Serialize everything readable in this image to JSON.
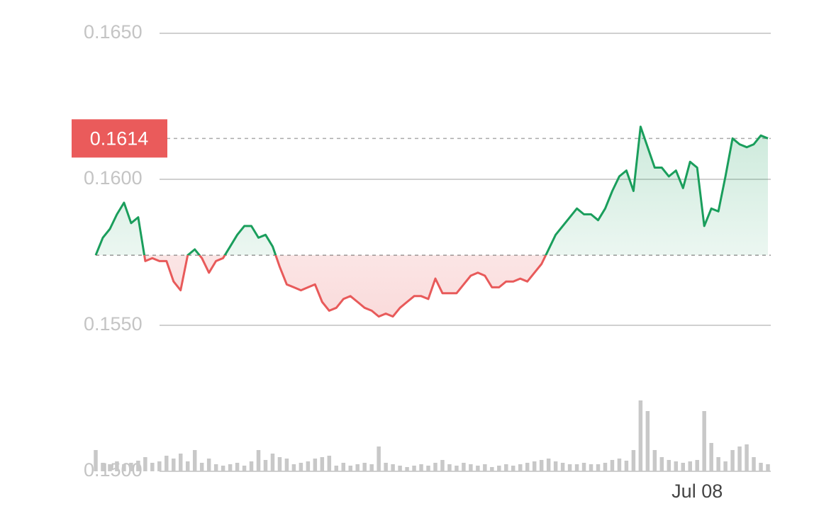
{
  "chart_data": {
    "type": "line",
    "categories": [
      null,
      null,
      null,
      null,
      null,
      null,
      null,
      null,
      null,
      null,
      null,
      null,
      null,
      null,
      null,
      null,
      null,
      null,
      null,
      null,
      null,
      null,
      null,
      null,
      null,
      null,
      null,
      null,
      null,
      null,
      null,
      null,
      null,
      null,
      null,
      null,
      null,
      null,
      null,
      null,
      null,
      null,
      null,
      null,
      null,
      null,
      null,
      null,
      null,
      null,
      null,
      null,
      null,
      null,
      null,
      null,
      null,
      null,
      null,
      null,
      null,
      null,
      null,
      null,
      null,
      null,
      null,
      null,
      null,
      null,
      null,
      null,
      null,
      null,
      null,
      null,
      null,
      null,
      null,
      null,
      null,
      null,
      null,
      null,
      null,
      "Jul 08",
      null,
      null,
      null,
      null,
      null,
      null,
      null,
      null,
      null,
      null
    ],
    "series": [
      {
        "name": "price",
        "color_up": "#1a9e5c",
        "color_down": "#e85a5a",
        "values": [
          0.1574,
          0.158,
          0.1583,
          0.1588,
          0.1592,
          0.1585,
          0.1587,
          0.1572,
          0.1573,
          0.1572,
          0.1572,
          0.1565,
          0.1562,
          0.1574,
          0.1576,
          0.1573,
          0.1568,
          0.1572,
          0.1573,
          0.1577,
          0.1581,
          0.1584,
          0.1584,
          0.158,
          0.1581,
          0.1577,
          0.157,
          0.1564,
          0.1563,
          0.1562,
          0.1563,
          0.1564,
          0.1558,
          0.1555,
          0.1556,
          0.1559,
          0.156,
          0.1558,
          0.1556,
          0.1555,
          0.1553,
          0.1554,
          0.1553,
          0.1556,
          0.1558,
          0.156,
          0.156,
          0.1559,
          0.1566,
          0.1561,
          0.1561,
          0.1561,
          0.1564,
          0.1567,
          0.1568,
          0.1567,
          0.1563,
          0.1563,
          0.1565,
          0.1565,
          0.1566,
          0.1565,
          0.1568,
          0.1571,
          0.1576,
          0.1581,
          0.1584,
          0.1587,
          0.159,
          0.1588,
          0.1588,
          0.1586,
          0.159,
          0.1596,
          0.1601,
          0.1603,
          0.1596,
          0.1618,
          0.1611,
          0.1604,
          0.1604,
          0.1601,
          0.1603,
          0.1597,
          0.1606,
          0.1604,
          0.1584,
          0.159,
          0.1589,
          0.1601,
          0.1614,
          0.1612,
          0.1611,
          0.1612,
          0.1615,
          0.1614
        ]
      },
      {
        "name": "volume",
        "color": "#c8c8c8",
        "values": [
          30,
          12,
          10,
          14,
          10,
          12,
          15,
          20,
          12,
          14,
          22,
          18,
          25,
          14,
          30,
          12,
          18,
          10,
          8,
          10,
          12,
          8,
          14,
          30,
          16,
          25,
          20,
          18,
          10,
          12,
          14,
          18,
          20,
          22,
          8,
          12,
          8,
          10,
          12,
          10,
          35,
          12,
          10,
          8,
          6,
          8,
          10,
          8,
          12,
          16,
          10,
          8,
          12,
          10,
          8,
          10,
          6,
          8,
          10,
          8,
          10,
          12,
          14,
          16,
          18,
          14,
          12,
          10,
          10,
          12,
          10,
          10,
          12,
          16,
          18,
          15,
          30,
          100,
          85,
          30,
          20,
          16,
          14,
          12,
          14,
          16,
          85,
          40,
          20,
          14,
          30,
          35,
          38,
          20,
          12,
          10
        ]
      }
    ],
    "ylim": [
      0.15,
      0.165
    ],
    "yticks": [
      {
        "value": 0.15,
        "label": "0.1500"
      },
      {
        "value": 0.155,
        "label": "0.1550"
      },
      {
        "value": 0.16,
        "label": "0.1600"
      },
      {
        "value": 0.165,
        "label": "0.1650"
      }
    ],
    "baseline": 0.1574,
    "last_price": 0.1614,
    "grid": true
  }
}
